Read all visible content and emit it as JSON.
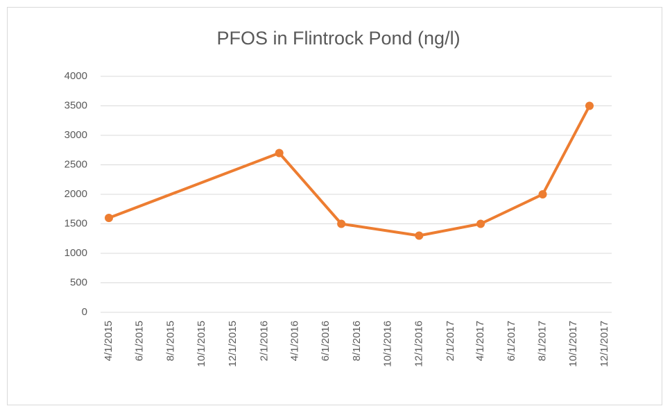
{
  "chart_data": {
    "type": "line",
    "title": "PFOS in Flintrock Pond (ng/l)",
    "x": [
      "4/1/2015",
      "3/1/2016",
      "7/1/2016",
      "12/1/2016",
      "4/1/2017",
      "8/1/2017",
      "11/1/2017"
    ],
    "series": [
      {
        "name": "PFOS",
        "color": "#ed7d31",
        "values": [
          1600,
          2700,
          1500,
          1300,
          1500,
          2000,
          3500
        ]
      }
    ],
    "xlim": [
      "4/1/2015",
      "12/1/2017"
    ],
    "xticks": [
      "4/1/2015",
      "6/1/2015",
      "8/1/2015",
      "10/1/2015",
      "12/1/2015",
      "2/1/2016",
      "4/1/2016",
      "6/1/2016",
      "8/1/2016",
      "10/1/2016",
      "12/1/2016",
      "2/1/2017",
      "4/1/2017",
      "6/1/2017",
      "8/1/2017",
      "10/1/2017",
      "12/1/2017"
    ],
    "ylim": [
      0,
      4000
    ],
    "yticks": [
      0,
      500,
      1000,
      1500,
      2000,
      2500,
      3000,
      3500,
      4000
    ],
    "grid": true
  }
}
